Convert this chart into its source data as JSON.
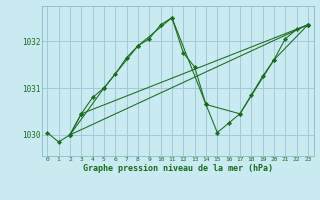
{
  "title": "Graphe pression niveau de la mer (hPa)",
  "background_color": "#c8eaf0",
  "grid_color": "#a0c8d8",
  "line_color": "#1a6b1a",
  "xlim": [
    -0.5,
    23.5
  ],
  "ylim": [
    1029.55,
    1032.75
  ],
  "yticks": [
    1030,
    1031,
    1032
  ],
  "xticks": [
    0,
    1,
    2,
    3,
    4,
    5,
    6,
    7,
    8,
    9,
    10,
    11,
    12,
    13,
    14,
    15,
    16,
    17,
    18,
    19,
    20,
    21,
    22,
    23
  ],
  "series": [
    {
      "x": [
        0,
        1,
        2,
        3,
        4,
        5,
        6,
        7,
        8,
        9,
        10,
        11,
        12,
        13,
        14,
        15,
        16,
        17,
        18,
        19,
        20,
        21,
        22,
        23
      ],
      "y": [
        1030.05,
        1029.85,
        1030.0,
        1030.45,
        1030.8,
        1031.0,
        1031.3,
        1031.65,
        1031.9,
        1032.05,
        1032.35,
        1032.5,
        1031.75,
        1031.45,
        1030.65,
        1030.05,
        1030.25,
        1030.45,
        1030.85,
        1031.25,
        1031.6,
        1032.05,
        1032.25,
        1032.35
      ]
    },
    {
      "x": [
        2,
        5,
        8,
        11,
        14,
        17,
        20,
        23
      ],
      "y": [
        1030.0,
        1031.0,
        1031.9,
        1032.5,
        1030.65,
        1030.45,
        1031.6,
        1032.35
      ]
    },
    {
      "x": [
        2,
        3,
        23
      ],
      "y": [
        1030.0,
        1030.45,
        1032.35
      ]
    },
    {
      "x": [
        2,
        23
      ],
      "y": [
        1030.0,
        1032.35
      ]
    }
  ]
}
